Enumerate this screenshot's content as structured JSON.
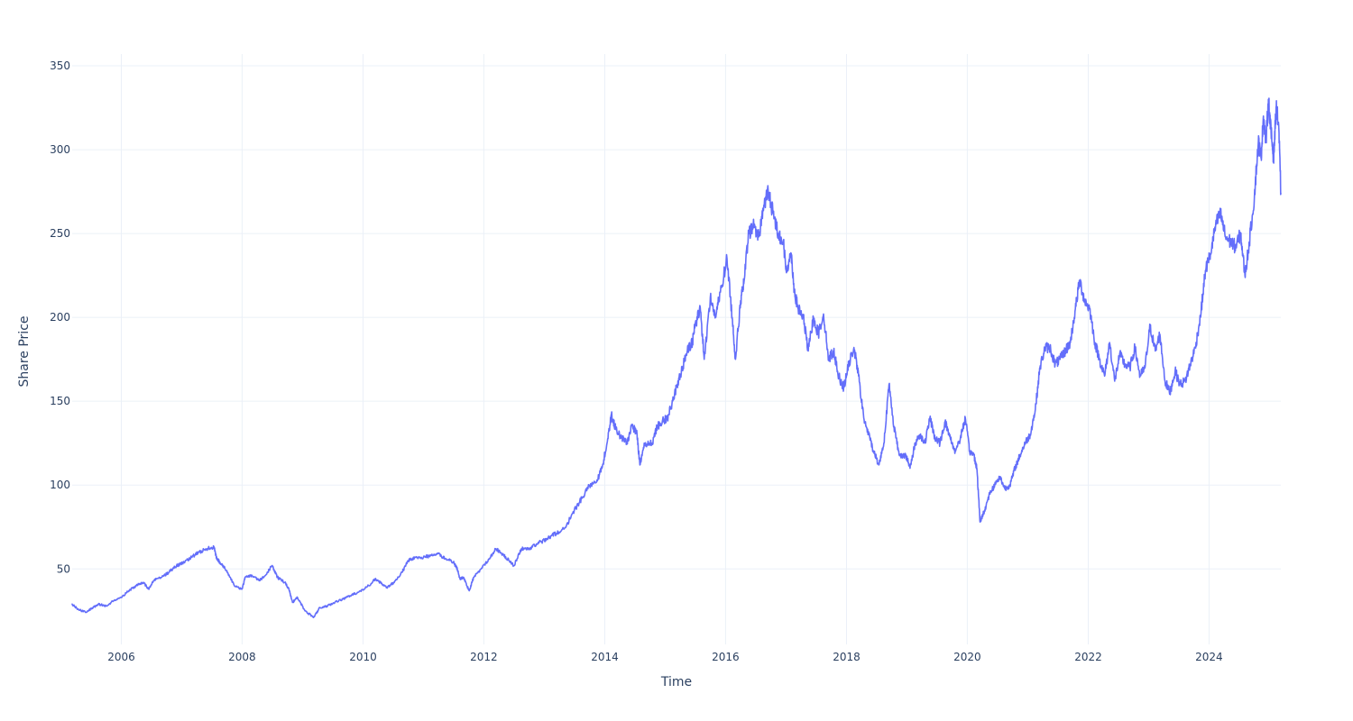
{
  "chart_data": {
    "type": "line",
    "title": "",
    "xlabel": "Time",
    "ylabel": "Share Price",
    "xlim": [
      "2005-03-10",
      "2025-03-10"
    ],
    "ylim": [
      5,
      357
    ],
    "x_ticks": [
      "2006",
      "2008",
      "2010",
      "2012",
      "2014",
      "2016",
      "2018",
      "2020",
      "2022",
      "2024"
    ],
    "y_ticks": [
      50,
      100,
      150,
      200,
      250,
      300,
      350
    ],
    "grid": true,
    "legend": "none",
    "colors": {
      "line": "#636efa",
      "grid": "#ebf0f8",
      "text": "#2a3f5f",
      "background": "#ffffff"
    },
    "series": [
      {
        "x": [
          "2005-03-10",
          "2005-04-15",
          "2005-06-01",
          "2005-07-15",
          "2005-08-15",
          "2005-10-01",
          "2005-11-15",
          "2006-01-01",
          "2006-02-15",
          "2006-04-01",
          "2006-05-15",
          "2006-06-15",
          "2006-07-15",
          "2006-09-01",
          "2006-10-15",
          "2006-12-01",
          "2007-01-15",
          "2007-03-01",
          "2007-04-15",
          "2007-06-01",
          "2007-07-15",
          "2007-08-01",
          "2007-08-20",
          "2007-10-01",
          "2007-11-15",
          "2008-01-01",
          "2008-01-20",
          "2008-03-01",
          "2008-04-15",
          "2008-06-01",
          "2008-07-01",
          "2008-08-01",
          "2008-09-15",
          "2008-10-10",
          "2008-11-01",
          "2008-12-01",
          "2009-01-15",
          "2009-03-08",
          "2009-04-15",
          "2009-06-01",
          "2009-07-15",
          "2009-09-01",
          "2009-10-15",
          "2009-12-01",
          "2010-02-05",
          "2010-03-15",
          "2010-04-15",
          "2010-05-25",
          "2010-07-05",
          "2010-08-25",
          "2010-10-01",
          "2010-11-15",
          "2011-01-01",
          "2011-02-15",
          "2011-04-01",
          "2011-05-15",
          "2011-07-01",
          "2011-07-25",
          "2011-08-10",
          "2011-09-01",
          "2011-09-20",
          "2011-10-05",
          "2011-11-01",
          "2011-12-15",
          "2012-02-01",
          "2012-03-15",
          "2012-05-01",
          "2012-06-01",
          "2012-07-01",
          "2012-08-15",
          "2012-10-01",
          "2012-11-15",
          "2013-01-01",
          "2013-02-15",
          "2013-04-01",
          "2013-05-15",
          "2013-07-01",
          "2013-08-15",
          "2013-10-01",
          "2013-11-15",
          "2013-12-15",
          "2014-01-15",
          "2014-02-10",
          "2014-03-10",
          "2014-04-15",
          "2014-05-15",
          "2014-06-15",
          "2014-07-15",
          "2014-08-01",
          "2014-09-01",
          "2014-10-15",
          "2014-11-15",
          "2014-12-15",
          "2015-01-15",
          "2015-02-15",
          "2015-03-15",
          "2015-04-15",
          "2015-05-15",
          "2015-06-15",
          "2015-07-01",
          "2015-08-01",
          "2015-08-25",
          "2015-10-01",
          "2015-11-01",
          "2015-12-01",
          "2016-01-10",
          "2016-02-10",
          "2016-03-01",
          "2016-04-01",
          "2016-04-20",
          "2016-05-20",
          "2016-06-20",
          "2016-07-20",
          "2016-08-15",
          "2016-09-15",
          "2016-10-15",
          "2016-11-15",
          "2016-12-15",
          "2017-01-01",
          "2017-02-01",
          "2017-02-20",
          "2017-03-15",
          "2017-04-15",
          "2017-05-15",
          "2017-06-15",
          "2017-07-15",
          "2017-08-15",
          "2017-09-15",
          "2017-10-15",
          "2017-11-15",
          "2017-12-15",
          "2018-01-15",
          "2018-02-15",
          "2018-03-15",
          "2018-04-15",
          "2018-05-15",
          "2018-06-15",
          "2018-07-15",
          "2018-08-15",
          "2018-09-15",
          "2018-10-15",
          "2018-11-15",
          "2018-12-25",
          "2019-01-20",
          "2019-02-20",
          "2019-03-20",
          "2019-04-20",
          "2019-05-20",
          "2019-06-20",
          "2019-07-20",
          "2019-08-20",
          "2019-09-20",
          "2019-10-20",
          "2019-11-20",
          "2019-12-20",
          "2020-01-15",
          "2020-02-10",
          "2020-02-28",
          "2020-03-18",
          "2020-04-15",
          "2020-05-15",
          "2020-06-15",
          "2020-07-15",
          "2020-08-15",
          "2020-09-15",
          "2020-10-15",
          "2020-11-15",
          "2020-12-15",
          "2021-01-15",
          "2021-02-15",
          "2021-03-15",
          "2021-04-15",
          "2021-05-15",
          "2021-06-15",
          "2021-07-15",
          "2021-08-15",
          "2021-09-15",
          "2021-10-15",
          "2021-11-10",
          "2021-12-10",
          "2022-01-10",
          "2022-02-10",
          "2022-03-10",
          "2022-04-10",
          "2022-05-10",
          "2022-06-10",
          "2022-07-10",
          "2022-08-10",
          "2022-09-10",
          "2022-10-10",
          "2022-11-10",
          "2022-12-10",
          "2023-01-10",
          "2023-02-10",
          "2023-03-10",
          "2023-04-10",
          "2023-05-10",
          "2023-06-10",
          "2023-07-10",
          "2023-08-10",
          "2023-09-10",
          "2023-10-10",
          "2023-11-10",
          "2023-12-10",
          "2024-01-10",
          "2024-02-10",
          "2024-03-10",
          "2024-04-10",
          "2024-05-10",
          "2024-06-10",
          "2024-07-10",
          "2024-08-05",
          "2024-09-01",
          "2024-10-01",
          "2024-10-25",
          "2024-11-10",
          "2024-11-25",
          "2024-12-10",
          "2024-12-25",
          "2025-01-10",
          "2025-01-25",
          "2025-02-10",
          "2025-02-25",
          "2025-03-10"
        ],
        "values": [
          29,
          26,
          24,
          27,
          29,
          28,
          31,
          33,
          37,
          40,
          42,
          38,
          43,
          45,
          48,
          52,
          54,
          57,
          60,
          62,
          63,
          56,
          54,
          49,
          40,
          38,
          45,
          46,
          43,
          48,
          52,
          45,
          42,
          38,
          30,
          33,
          25,
          21,
          27,
          28,
          30,
          32,
          34,
          36,
          40,
          44,
          42,
          39,
          42,
          48,
          55,
          57,
          57,
          58,
          59,
          56,
          54,
          50,
          44,
          45,
          40,
          37,
          45,
          50,
          56,
          62,
          58,
          55,
          52,
          62,
          62,
          65,
          67,
          70,
          72,
          76,
          85,
          92,
          100,
          103,
          110,
          125,
          142,
          133,
          128,
          125,
          136,
          130,
          112,
          125,
          125,
          135,
          138,
          140,
          150,
          160,
          170,
          180,
          185,
          195,
          206,
          175,
          212,
          200,
          215,
          235,
          200,
          175,
          210,
          220,
          250,
          255,
          248,
          265,
          275,
          262,
          250,
          245,
          228,
          238,
          215,
          205,
          200,
          180,
          200,
          190,
          202,
          175,
          180,
          165,
          158,
          172,
          182,
          165,
          140,
          130,
          120,
          112,
          125,
          160,
          135,
          118,
          118,
          110,
          125,
          130,
          125,
          140,
          128,
          125,
          138,
          128,
          120,
          128,
          140,
          120,
          118,
          110,
          78,
          85,
          95,
          100,
          105,
          98,
          100,
          110,
          118,
          125,
          130,
          145,
          170,
          182,
          182,
          172,
          175,
          180,
          185,
          205,
          222,
          210,
          205,
          185,
          175,
          165,
          185,
          162,
          178,
          172,
          170,
          182,
          165,
          170,
          195,
          180,
          190,
          162,
          155,
          168,
          160,
          162,
          172,
          182,
          200,
          228,
          238,
          255,
          262,
          248,
          245,
          242,
          250,
          225,
          245,
          272,
          305,
          295,
          320,
          305,
          330,
          310,
          295,
          325,
          315,
          274
        ]
      }
    ]
  }
}
